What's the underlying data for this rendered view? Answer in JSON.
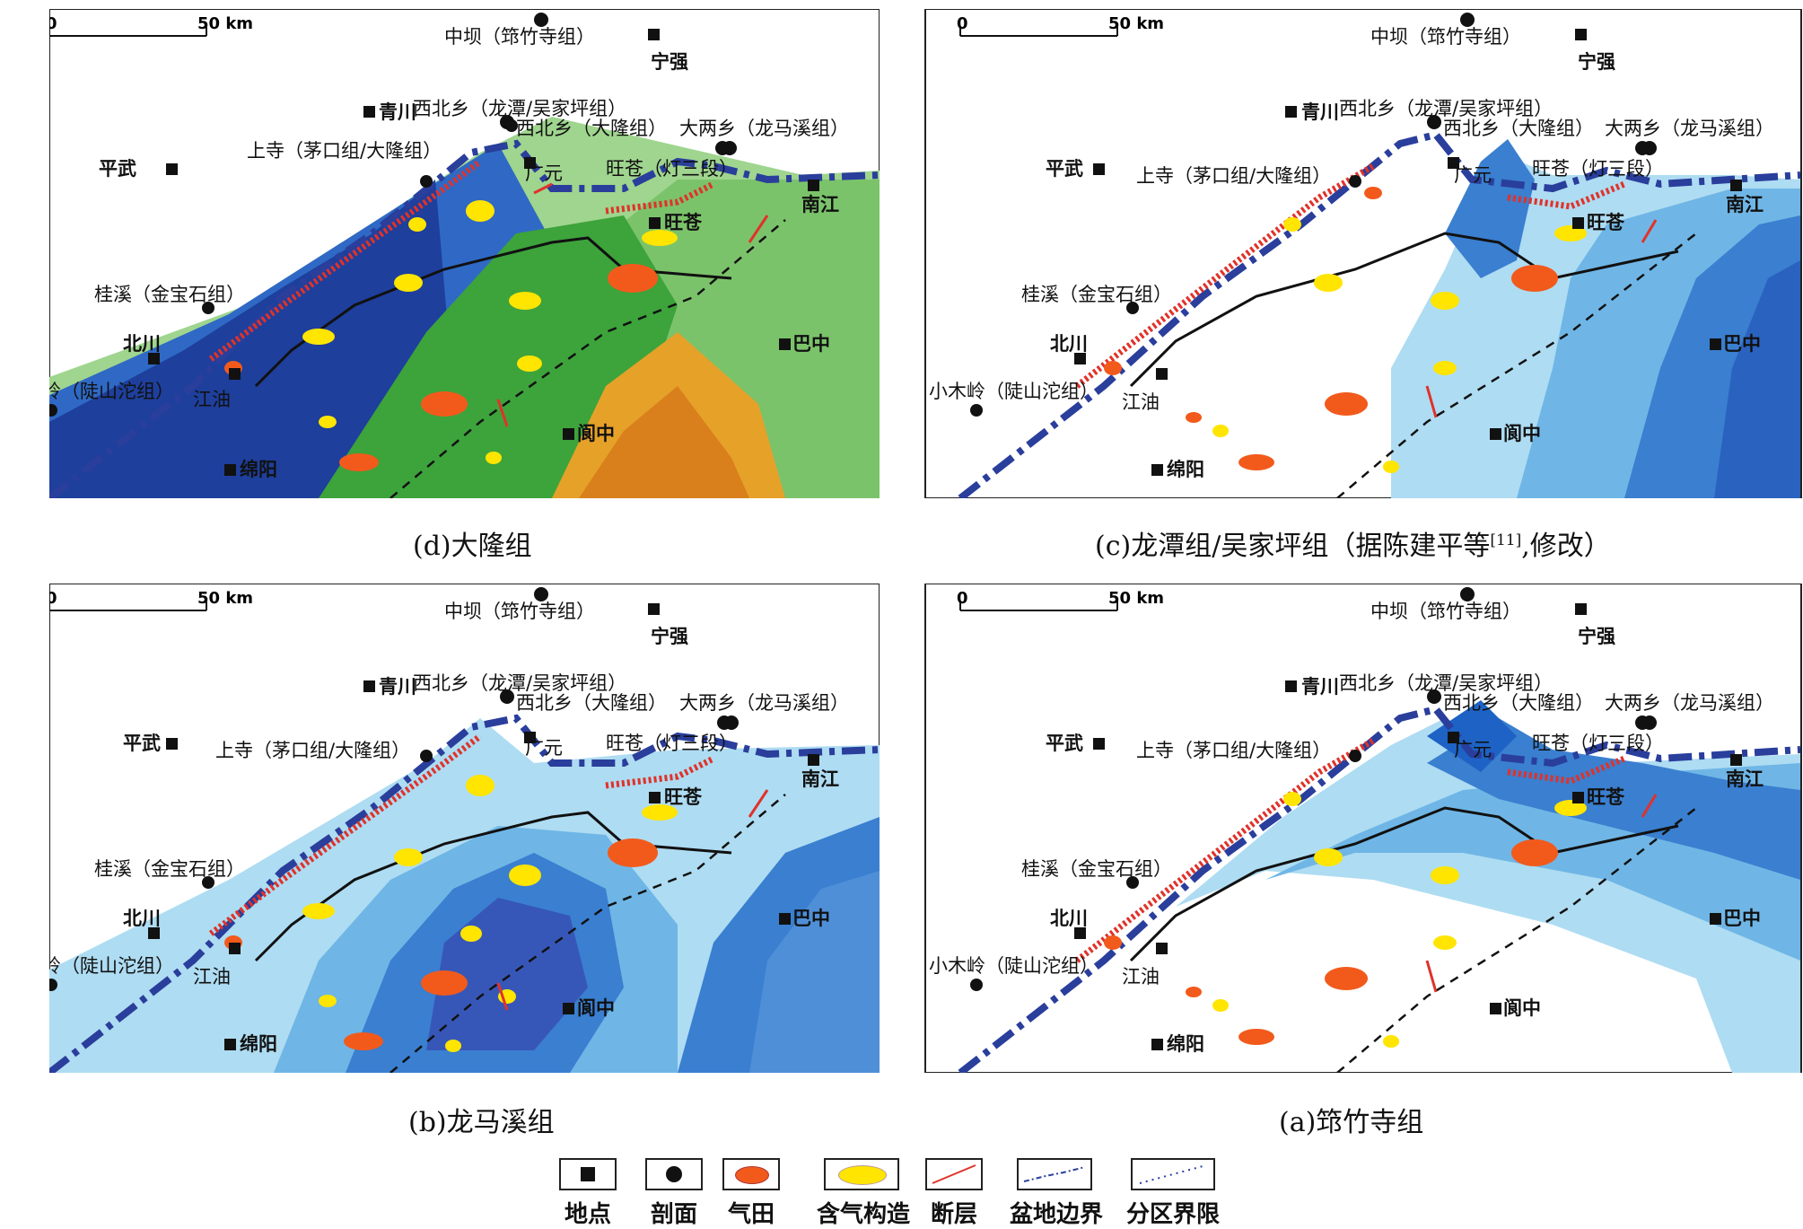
{
  "scale": {
    "zero": "0",
    "km": "50 km"
  },
  "places": {
    "zhongba": "中坝（筇竹寺组）",
    "ningqiang": "宁强",
    "qingchuan": "青川",
    "xibei_lt": "西北乡（龙潭/吴家坪组）",
    "xibei_dl": "西北乡（大隆组）",
    "daliang": "大两乡（龙马溪组）",
    "pingwu": "平武",
    "shangsi": "上寺（茅口组/大隆组）",
    "guangyuan": "广元",
    "wangcang_d3": "旺苍（灯三段）",
    "wangcang": "旺苍",
    "nanjiang": "南江",
    "guixi": "桂溪（金宝石组）",
    "beichuan": "北川",
    "xiaomuling": "小木岭（陡山沱组）",
    "jiangyou": "江油",
    "bazhong": "巴中",
    "langzhong": "阆中",
    "mianyang": "绵阳"
  },
  "captions": {
    "d": "(d)大隆组",
    "c_main": "(c)龙潭组/吴家坪组（据陈建平等",
    "c_ref": "[11]",
    "c_tail": ",修改）",
    "b": "(b)龙马溪组",
    "a": "(a)筇竹寺组"
  },
  "legend": [
    {
      "label": "地点",
      "icon": "square-icon"
    },
    {
      "label": "剖面",
      "icon": "circle-icon"
    },
    {
      "label": "气田",
      "icon": "orange-ellipse-icon"
    },
    {
      "label": "含气构造",
      "icon": "yellow-ellipse-icon"
    },
    {
      "label": "断层",
      "icon": "red-line-icon"
    },
    {
      "label": "盆地边界",
      "icon": "blue-dashdot-icon"
    },
    {
      "label": "分区界限",
      "icon": "black-dotted-icon"
    }
  ],
  "colors": {
    "deep_blue": "#1e3f9c",
    "blue": "#3a7fd0",
    "light_blue": "#aedcf2",
    "green": "#3da33b",
    "orange": "#f25a1c",
    "yellow": "#ffe500",
    "fault_red": "#e0322a",
    "boundary_blue": "#2a3e9c"
  }
}
